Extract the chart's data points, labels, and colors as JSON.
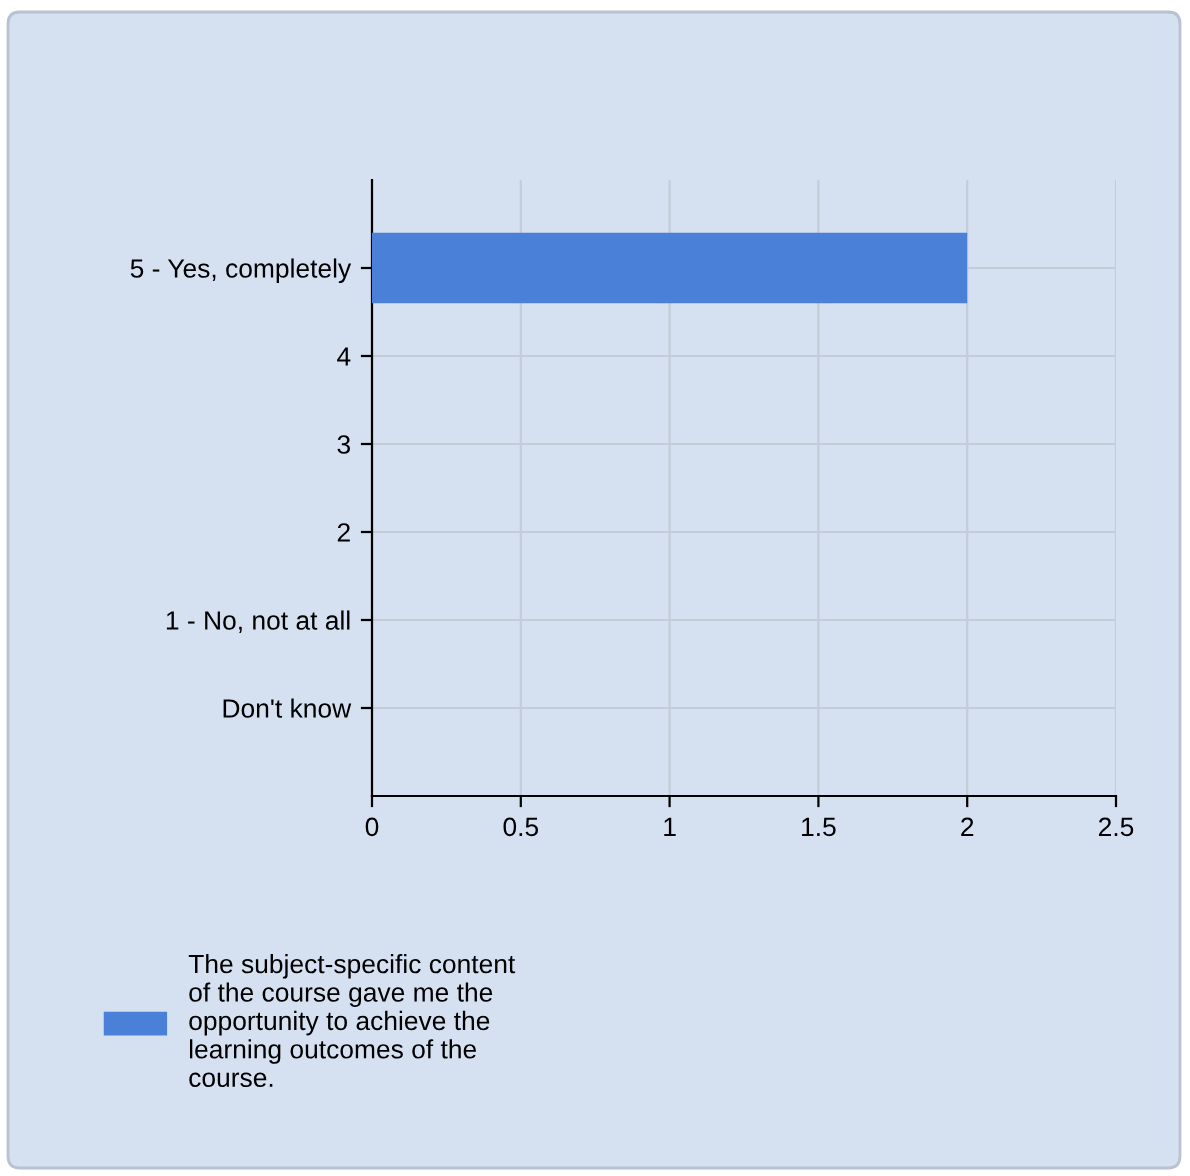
{
  "chart_data": {
    "type": "bar",
    "orientation": "horizontal",
    "categories": [
      "5 - Yes, completely",
      "4",
      "3",
      "2",
      "1 - No, not at all",
      "Don't know"
    ],
    "series": [
      {
        "name": "The subject-specific content\nof the course gave me the\nopportunity to achieve the\nlearning outcomes of the\ncourse.",
        "color": "#4a80d8",
        "values": [
          2,
          0,
          0,
          0,
          0,
          0
        ]
      }
    ],
    "xlim": [
      0,
      2.5
    ],
    "xticks": [
      0,
      0.5,
      1,
      1.5,
      2,
      2.5
    ],
    "grid": true,
    "legend": "bottom"
  }
}
